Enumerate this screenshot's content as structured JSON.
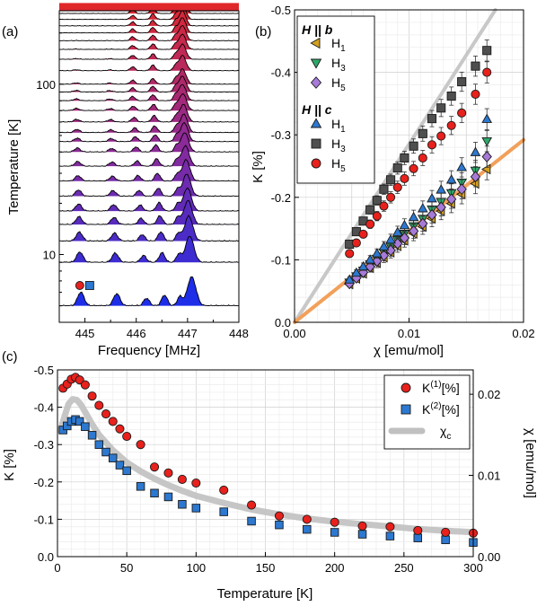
{
  "panels": {
    "a": {
      "label": "(a)"
    },
    "b": {
      "label": "(b)"
    },
    "c": {
      "label": "(c)"
    }
  },
  "chart_data": [
    {
      "id": "a",
      "type": "area",
      "xlabel": "Frequency [MHz]",
      "ylabel": "Temperature [K]",
      "xlim": [
        444.5,
        448
      ],
      "ylim": [
        4,
        270
      ],
      "y_scale": "log",
      "x_ticks": [
        "445",
        "446",
        "447",
        "448"
      ],
      "y_ticks": [
        "10",
        "100"
      ],
      "grid": false,
      "temperatures": [
        5,
        9,
        12,
        15,
        18,
        22,
        27,
        33,
        40,
        46,
        52,
        60,
        70,
        80,
        90,
        100,
        120,
        140,
        160,
        180,
        200,
        220,
        240,
        260,
        280,
        300
      ],
      "peaks_mhz": {
        "peak1": 444.92,
        "peak2": 445.62,
        "low_T_main_peak": 447.08,
        "high_T_peak": 447.02
      },
      "marker_labels": [
        {
          "symbol": "circle",
          "color": "#e8211d"
        },
        {
          "symbol": "square",
          "color": "#2d78d0"
        }
      ],
      "color_low_T": "#1e2de8",
      "color_mid_T": "#8a2a9a",
      "color_high_T": "#e0282a"
    },
    {
      "id": "b",
      "type": "scatter",
      "xlabel": "χ [emu/mol]",
      "ylabel": "K [%]",
      "xlim": [
        0,
        0.02
      ],
      "ylim": [
        0,
        -0.5
      ],
      "x_ticks": [
        "0.00",
        "0.01",
        "0.02"
      ],
      "y_ticks": [
        "0.0",
        "-0.1",
        "-0.2",
        "-0.3",
        "-0.4",
        "-0.5"
      ],
      "grid": true,
      "legend": {
        "group_b": "H || b",
        "group_c": "H || c",
        "entries": [
          {
            "group": "b",
            "name": "H",
            "sub": "1",
            "marker": "triangle-left",
            "color": "#d4a020"
          },
          {
            "group": "b",
            "name": "H",
            "sub": "3",
            "marker": "triangle-down",
            "color": "#2fa86a"
          },
          {
            "group": "b",
            "name": "H",
            "sub": "5",
            "marker": "diamond",
            "color": "#a77ad8"
          },
          {
            "group": "c",
            "name": "H",
            "sub": "1",
            "marker": "triangle-up",
            "color": "#2d78d0"
          },
          {
            "group": "c",
            "name": "H",
            "sub": "3",
            "marker": "square",
            "color": "#4f4f4f"
          },
          {
            "group": "c",
            "name": "H",
            "sub": "5",
            "marker": "circle",
            "color": "#e8211d"
          }
        ]
      },
      "fit_lines": [
        {
          "color": "#c8c8c8",
          "slope": -28.5
        },
        {
          "color": "#f2a05a",
          "slope": -14.6
        }
      ],
      "series": [
        {
          "name": "H1 || b",
          "marker": "triangle-left",
          "color": "#d4a020",
          "x": [
            0.0048,
            0.0054,
            0.006,
            0.0066,
            0.0072,
            0.0078,
            0.0084,
            0.009,
            0.0096,
            0.0104,
            0.0112,
            0.012,
            0.0128,
            0.0137,
            0.0146,
            0.0158,
            0.0168
          ],
          "y": [
            -0.061,
            -0.07,
            -0.078,
            -0.087,
            -0.095,
            -0.104,
            -0.112,
            -0.122,
            -0.131,
            -0.142,
            -0.153,
            -0.166,
            -0.178,
            -0.19,
            -0.205,
            -0.222,
            -0.245
          ]
        },
        {
          "name": "H3 || b",
          "marker": "triangle-down",
          "color": "#2fa86a",
          "x": [
            0.0048,
            0.0054,
            0.006,
            0.0066,
            0.0072,
            0.0078,
            0.0084,
            0.009,
            0.0096,
            0.0104,
            0.0112,
            0.012,
            0.0128,
            0.0137,
            0.0146,
            0.0158,
            0.0168
          ],
          "y": [
            -0.064,
            -0.074,
            -0.083,
            -0.093,
            -0.102,
            -0.112,
            -0.121,
            -0.132,
            -0.142,
            -0.154,
            -0.166,
            -0.181,
            -0.193,
            -0.207,
            -0.224,
            -0.243,
            -0.29
          ]
        },
        {
          "name": "H5 || b",
          "marker": "diamond",
          "color": "#a77ad8",
          "x": [
            0.0048,
            0.0054,
            0.006,
            0.0066,
            0.0072,
            0.0078,
            0.0084,
            0.009,
            0.0096,
            0.0104,
            0.0112,
            0.012,
            0.0128,
            0.0137,
            0.0146,
            0.0158,
            0.0168
          ],
          "y": [
            -0.062,
            -0.071,
            -0.08,
            -0.089,
            -0.098,
            -0.107,
            -0.115,
            -0.126,
            -0.135,
            -0.146,
            -0.158,
            -0.172,
            -0.184,
            -0.197,
            -0.213,
            -0.233,
            -0.265
          ]
        },
        {
          "name": "H1 || c",
          "marker": "triangle-up",
          "color": "#2d78d0",
          "x": [
            0.0048,
            0.0054,
            0.006,
            0.0066,
            0.0072,
            0.0078,
            0.0084,
            0.009,
            0.0096,
            0.0104,
            0.0112,
            0.012,
            0.0128,
            0.0137,
            0.0146,
            0.0158,
            0.0168
          ],
          "y": [
            -0.068,
            -0.079,
            -0.089,
            -0.1,
            -0.11,
            -0.121,
            -0.132,
            -0.144,
            -0.155,
            -0.168,
            -0.182,
            -0.198,
            -0.212,
            -0.228,
            -0.248,
            -0.272,
            -0.325
          ]
        },
        {
          "name": "H3 || c",
          "marker": "square",
          "color": "#4f4f4f",
          "x": [
            0.0048,
            0.0054,
            0.006,
            0.0066,
            0.0072,
            0.0078,
            0.0084,
            0.009,
            0.0096,
            0.0104,
            0.0112,
            0.012,
            0.0128,
            0.0137,
            0.0146,
            0.0158,
            0.0168
          ],
          "y": [
            -0.125,
            -0.145,
            -0.162,
            -0.18,
            -0.195,
            -0.213,
            -0.228,
            -0.247,
            -0.263,
            -0.282,
            -0.302,
            -0.326,
            -0.343,
            -0.362,
            -0.385,
            -0.41,
            -0.435
          ]
        },
        {
          "name": "H5 || c",
          "marker": "circle",
          "color": "#e8211d",
          "x": [
            0.0048,
            0.0054,
            0.006,
            0.0066,
            0.0072,
            0.0078,
            0.0084,
            0.009,
            0.0096,
            0.0104,
            0.0112,
            0.012,
            0.0128,
            0.0137,
            0.0146,
            0.0158,
            0.0168
          ],
          "y": [
            -0.11,
            -0.127,
            -0.141,
            -0.157,
            -0.17,
            -0.186,
            -0.2,
            -0.216,
            -0.23,
            -0.246,
            -0.263,
            -0.284,
            -0.298,
            -0.315,
            -0.335,
            -0.365,
            -0.4
          ]
        }
      ]
    },
    {
      "id": "c",
      "type": "scatter",
      "xlabel": "Temperature [K]",
      "ylabel": "K [%]",
      "y2label": "χ [emu/mol]",
      "xlim": [
        0,
        300
      ],
      "ylim": [
        0,
        -0.5
      ],
      "y2lim": [
        0,
        0.023
      ],
      "x_ticks": [
        "0",
        "50",
        "100",
        "150",
        "200",
        "250",
        "300"
      ],
      "y_ticks": [
        "0.0",
        "-0.1",
        "-0.2",
        "-0.3",
        "-0.4",
        "-0.5"
      ],
      "y2_ticks": [
        "0.00",
        "0.01",
        "0.02"
      ],
      "grid": true,
      "legend_position": "top-right",
      "legend": [
        {
          "name": "K",
          "sup": "(1)",
          "unit": "[%]",
          "marker": "circle",
          "color": "#e8211d"
        },
        {
          "name": "K",
          "sup": "(2)",
          "unit": "[%]",
          "marker": "square",
          "color": "#2d78d0"
        },
        {
          "name": "χ",
          "sub": "c",
          "marker": "line",
          "color": "#c0c0c0"
        }
      ],
      "series": [
        {
          "name": "K(1)",
          "color": "#e8211d",
          "x": [
            4,
            7,
            10,
            13,
            16,
            20,
            25,
            30,
            35,
            40,
            45,
            50,
            60,
            70,
            80,
            90,
            100,
            120,
            140,
            160,
            180,
            200,
            220,
            240,
            260,
            280,
            300
          ],
          "y": [
            -0.451,
            -0.462,
            -0.475,
            -0.48,
            -0.473,
            -0.46,
            -0.43,
            -0.405,
            -0.382,
            -0.362,
            -0.342,
            -0.322,
            -0.3,
            -0.24,
            -0.224,
            -0.207,
            -0.197,
            -0.178,
            -0.138,
            -0.109,
            -0.1,
            -0.092,
            -0.082,
            -0.08,
            -0.07,
            -0.065,
            -0.063
          ]
        },
        {
          "name": "K(2)",
          "color": "#2d78d0",
          "x": [
            4,
            7,
            10,
            13,
            16,
            20,
            25,
            30,
            35,
            40,
            45,
            50,
            60,
            70,
            80,
            90,
            100,
            120,
            140,
            160,
            180,
            200,
            220,
            240,
            260,
            280,
            300
          ],
          "y": [
            -0.339,
            -0.35,
            -0.362,
            -0.367,
            -0.362,
            -0.348,
            -0.325,
            -0.3,
            -0.28,
            -0.264,
            -0.245,
            -0.23,
            -0.188,
            -0.17,
            -0.16,
            -0.14,
            -0.13,
            -0.12,
            -0.095,
            -0.085,
            -0.073,
            -0.065,
            -0.06,
            -0.055,
            -0.05,
            -0.045,
            -0.038
          ]
        },
        {
          "name": "χc",
          "color": "#c0c0c0",
          "x": [
            2,
            5,
            8,
            11,
            14,
            17,
            20,
            25,
            30,
            40,
            50,
            60,
            70,
            80,
            90,
            100,
            120,
            140,
            160,
            180,
            200,
            220,
            240,
            260,
            280,
            300
          ],
          "y2": [
            0.0155,
            0.0172,
            0.0188,
            0.0194,
            0.0193,
            0.0187,
            0.0178,
            0.0163,
            0.015,
            0.0131,
            0.0116,
            0.0105,
            0.0096,
            0.0088,
            0.0081,
            0.0075,
            0.0066,
            0.0058,
            0.0052,
            0.0047,
            0.0043,
            0.004,
            0.0037,
            0.0034,
            0.0032,
            0.003
          ]
        }
      ]
    }
  ]
}
